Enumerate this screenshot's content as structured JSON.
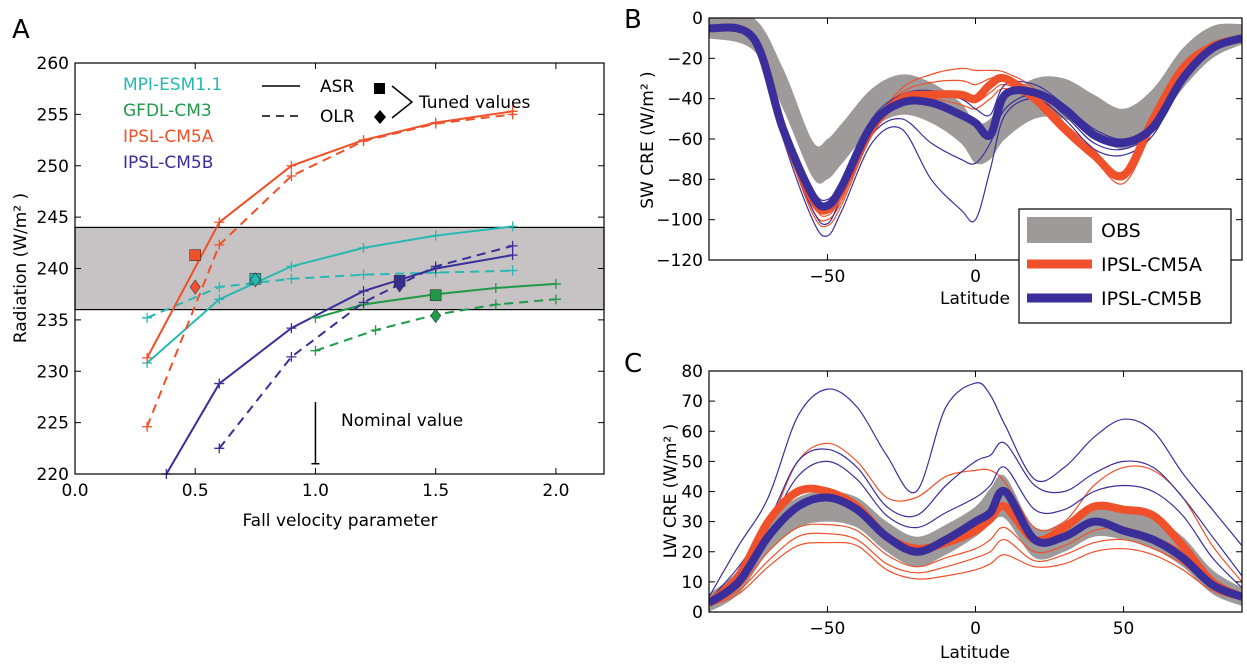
{
  "chart_data": [
    {
      "panel": "A",
      "type": "line",
      "xlabel": "Fall velocity parameter",
      "ylabel": "Radiation (W/m² )",
      "xlim": [
        0,
        2.2
      ],
      "ylim": [
        220,
        260
      ],
      "xticks": [
        0.0,
        0.5,
        1.0,
        1.5,
        2.0
      ],
      "xtick_labels": [
        "0.0",
        "0.5",
        "1.0",
        "1.5",
        "2.0"
      ],
      "yticks": [
        220,
        225,
        230,
        235,
        240,
        245,
        250,
        255,
        260
      ],
      "target_band": [
        236,
        244
      ],
      "legend_models": [
        {
          "name": "MPI-ESM1.1",
          "color": "#27b8b2"
        },
        {
          "name": "GFDL-CM3",
          "color": "#1f9a48"
        },
        {
          "name": "IPSL-CM5A",
          "color": "#f0502a"
        },
        {
          "name": "IPSL-CM5B",
          "color": "#3a2f9a"
        }
      ],
      "legend_styles": {
        "asr": "ASR",
        "olr": "OLR",
        "tuned": "Tuned values"
      },
      "annotation": {
        "text": "Nominal value",
        "x": 1.0,
        "y_from": 227,
        "y_to": 221
      },
      "series": [
        {
          "model": "MPI-ESM1.1",
          "kind": "ASR",
          "x": [
            0.3,
            0.6,
            0.9,
            1.2,
            1.5,
            1.82
          ],
          "y": [
            230.8,
            237.0,
            240.2,
            242.0,
            243.2,
            244.1
          ]
        },
        {
          "model": "MPI-ESM1.1",
          "kind": "OLR",
          "x": [
            0.3,
            0.6,
            0.9,
            1.2,
            1.5,
            1.82
          ],
          "y": [
            235.2,
            238.2,
            239.0,
            239.4,
            239.6,
            239.8
          ]
        },
        {
          "model": "GFDL-CM3",
          "kind": "ASR",
          "x": [
            1.0,
            1.2,
            1.5,
            1.75,
            2.0
          ],
          "y": [
            235.2,
            236.5,
            237.5,
            238.1,
            238.5
          ]
        },
        {
          "model": "GFDL-CM3",
          "kind": "OLR",
          "x": [
            1.0,
            1.25,
            1.5,
            1.75,
            2.0
          ],
          "y": [
            232.0,
            234.0,
            235.5,
            236.5,
            237.0
          ]
        },
        {
          "model": "IPSL-CM5A",
          "kind": "ASR",
          "x": [
            0.3,
            0.6,
            0.9,
            1.2,
            1.5,
            1.82
          ],
          "y": [
            231.3,
            244.5,
            250.0,
            252.5,
            254.2,
            255.3
          ]
        },
        {
          "model": "IPSL-CM5A",
          "kind": "OLR",
          "x": [
            0.3,
            0.6,
            0.9,
            1.2,
            1.5,
            1.82
          ],
          "y": [
            224.6,
            242.3,
            249.0,
            252.4,
            254.1,
            255.0
          ]
        },
        {
          "model": "IPSL-CM5B",
          "kind": "ASR",
          "x": [
            0.38,
            0.6,
            0.9,
            1.2,
            1.5,
            1.82
          ],
          "y": [
            220.0,
            228.8,
            234.2,
            237.8,
            240.0,
            241.3
          ]
        },
        {
          "model": "IPSL-CM5B",
          "kind": "OLR",
          "x": [
            0.6,
            0.9,
            1.2,
            1.5,
            1.82
          ],
          "y": [
            222.5,
            231.4,
            236.7,
            240.2,
            242.2
          ]
        }
      ],
      "tuned_points": [
        {
          "model": "IPSL-CM5A",
          "kind": "ASR",
          "x": 0.5,
          "y": 241.3
        },
        {
          "model": "IPSL-CM5A",
          "kind": "OLR",
          "x": 0.5,
          "y": 238.2
        },
        {
          "model": "MPI-ESM1.1",
          "kind": "ASR",
          "x": 0.75,
          "y": 239.0
        },
        {
          "model": "MPI-ESM1.1",
          "kind": "OLR",
          "x": 0.75,
          "y": 238.9
        },
        {
          "model": "IPSL-CM5B",
          "kind": "ASR",
          "x": 1.35,
          "y": 238.8
        },
        {
          "model": "IPSL-CM5B",
          "kind": "OLR",
          "x": 1.35,
          "y": 238.4
        },
        {
          "model": "GFDL-CM3",
          "kind": "ASR",
          "x": 1.5,
          "y": 237.4
        },
        {
          "model": "GFDL-CM3",
          "kind": "OLR",
          "x": 1.5,
          "y": 235.4
        }
      ]
    },
    {
      "panel": "B",
      "type": "line",
      "xlabel": "Latitude",
      "ylabel": "SW CRE (W/m² )",
      "xlim": [
        -90,
        90
      ],
      "ylim": [
        -120,
        0
      ],
      "xticks": [
        -50,
        0
      ],
      "xtick_labels": [
        "−50",
        "0"
      ],
      "yticks": [
        -120,
        -100,
        -80,
        -60,
        -40,
        -20,
        0
      ],
      "ytick_labels": [
        "−120",
        "−100",
        "−80",
        "−60",
        "−40",
        "−20",
        "0"
      ],
      "legend": [
        "OBS",
        "IPSL-CM5A",
        "IPSL-CM5B"
      ],
      "lat": [
        -90,
        -75,
        -65,
        -55,
        -50,
        -45,
        -35,
        -25,
        -15,
        -5,
        0,
        5,
        10,
        20,
        30,
        40,
        50,
        60,
        70,
        80,
        90
      ],
      "obs": {
        "center": [
          -5,
          -8,
          -35,
          -70,
          -70,
          -62,
          -45,
          -38,
          -42,
          -52,
          -62,
          -60,
          -50,
          -40,
          -40,
          -48,
          -55,
          -45,
          -25,
          -12,
          -8
        ],
        "halfwidth": [
          5,
          8,
          10,
          9,
          10,
          10,
          10,
          10,
          10,
          10,
          10,
          10,
          10,
          10,
          10,
          10,
          10,
          10,
          10,
          8,
          5
        ]
      },
      "cm5a_mean": [
        -5,
        -10,
        -55,
        -90,
        -95,
        -85,
        -55,
        -40,
        -38,
        -38,
        -40,
        -33,
        -30,
        -40,
        -55,
        -68,
        -78,
        -50,
        -25,
        -14,
        -10
      ],
      "cm5b_mean": [
        -5,
        -10,
        -55,
        -88,
        -93,
        -83,
        -53,
        -42,
        -42,
        -48,
        -52,
        -58,
        -38,
        -37,
        -45,
        -58,
        -62,
        -54,
        -30,
        -15,
        -10
      ],
      "cm5a_members": [
        [
          -5,
          -10,
          -57,
          -95,
          -100,
          -90,
          -55,
          -35,
          -28,
          -25,
          -26,
          -26,
          -27,
          -35,
          -52,
          -65,
          -80,
          -53,
          -27,
          -14,
          -9
        ],
        [
          -5,
          -10,
          -56,
          -92,
          -98,
          -87,
          -53,
          -37,
          -32,
          -31,
          -33,
          -30,
          -29,
          -37,
          -53,
          -66,
          -79,
          -52,
          -26,
          -14,
          -9
        ],
        [
          -5,
          -9,
          -54,
          -88,
          -93,
          -83,
          -52,
          -40,
          -38,
          -40,
          -42,
          -37,
          -33,
          -40,
          -56,
          -69,
          -76,
          -49,
          -24,
          -13,
          -9
        ],
        [
          -6,
          -11,
          -58,
          -97,
          -103,
          -92,
          -58,
          -42,
          -40,
          -43,
          -45,
          -40,
          -35,
          -42,
          -57,
          -70,
          -82,
          -55,
          -28,
          -15,
          -10
        ]
      ],
      "cm5b_members": [
        [
          -5,
          -10,
          -60,
          -100,
          -108,
          -95,
          -62,
          -55,
          -80,
          -95,
          -100,
          -75,
          -48,
          -40,
          -50,
          -65,
          -68,
          -58,
          -32,
          -16,
          -10
        ],
        [
          -5,
          -10,
          -58,
          -95,
          -102,
          -88,
          -58,
          -50,
          -62,
          -70,
          -72,
          -62,
          -45,
          -38,
          -48,
          -62,
          -65,
          -56,
          -31,
          -15,
          -10
        ],
        [
          -5,
          -9,
          -52,
          -85,
          -90,
          -80,
          -50,
          -38,
          -36,
          -40,
          -45,
          -48,
          -33,
          -33,
          -43,
          -55,
          -60,
          -52,
          -29,
          -14,
          -9
        ]
      ]
    },
    {
      "panel": "C",
      "type": "line",
      "xlabel": "Latitude",
      "ylabel": "LW CRE (W/m² )",
      "xlim": [
        -90,
        90
      ],
      "ylim": [
        0,
        80
      ],
      "xticks": [
        -50,
        0,
        50
      ],
      "xtick_labels": [
        "−50",
        "0",
        "50"
      ],
      "yticks": [
        0,
        10,
        20,
        30,
        40,
        50,
        60,
        70,
        80
      ],
      "lat": [
        -90,
        -80,
        -70,
        -60,
        -50,
        -40,
        -30,
        -20,
        -10,
        0,
        5,
        10,
        20,
        30,
        40,
        50,
        60,
        70,
        80,
        90
      ],
      "obs": {
        "center": [
          3,
          10,
          25,
          33,
          35,
          33,
          25,
          20,
          24,
          30,
          35,
          38,
          23,
          25,
          30,
          29,
          26,
          20,
          10,
          5
        ],
        "halfwidth": [
          3,
          4,
          5,
          5,
          5,
          5,
          5,
          5,
          5,
          5,
          6,
          7,
          5,
          5,
          5,
          5,
          5,
          5,
          4,
          3
        ]
      },
      "cm5a_mean": [
        3,
        12,
        30,
        40,
        40,
        35,
        25,
        21,
        23,
        27,
        31,
        35,
        24,
        28,
        35,
        34,
        32,
        22,
        10,
        5
      ],
      "cm5b_mean": [
        3,
        10,
        25,
        35,
        38,
        34,
        25,
        20,
        24,
        30,
        33,
        40,
        24,
        25,
        30,
        27,
        24,
        18,
        9,
        5
      ],
      "cm5a_members": [
        [
          2,
          10,
          28,
          50,
          56,
          50,
          38,
          38,
          45,
          47,
          47,
          43,
          28,
          30,
          42,
          48,
          47,
          38,
          22,
          10
        ],
        [
          2,
          8,
          20,
          28,
          29,
          27,
          19,
          15,
          18,
          21,
          24,
          28,
          20,
          22,
          27,
          28,
          25,
          20,
          10,
          5
        ],
        [
          2,
          7,
          17,
          25,
          26,
          24,
          16,
          13,
          15,
          18,
          20,
          24,
          17,
          19,
          23,
          24,
          21,
          16,
          8,
          4
        ],
        [
          2,
          6,
          15,
          22,
          23,
          22,
          14,
          11,
          12,
          14,
          16,
          19,
          15,
          16,
          20,
          21,
          19,
          14,
          7,
          4
        ]
      ],
      "cm5b_members": [
        [
          5,
          22,
          38,
          65,
          74,
          68,
          52,
          40,
          68,
          76,
          72,
          62,
          44,
          48,
          58,
          64,
          60,
          46,
          34,
          22
        ],
        [
          4,
          15,
          30,
          50,
          54,
          48,
          35,
          32,
          42,
          50,
          52,
          56,
          42,
          40,
          46,
          50,
          48,
          38,
          25,
          12
        ],
        [
          3,
          12,
          28,
          45,
          50,
          44,
          32,
          28,
          33,
          38,
          42,
          48,
          34,
          34,
          40,
          42,
          40,
          32,
          18,
          8
        ]
      ]
    }
  ],
  "colors": {
    "mpi": "#27b8b2",
    "gfdl": "#1f9a48",
    "cm5a": "#f0502a",
    "cm5b": "#3a2f9a",
    "obs": "#9e9a9a",
    "band": "#c7c2c3"
  }
}
